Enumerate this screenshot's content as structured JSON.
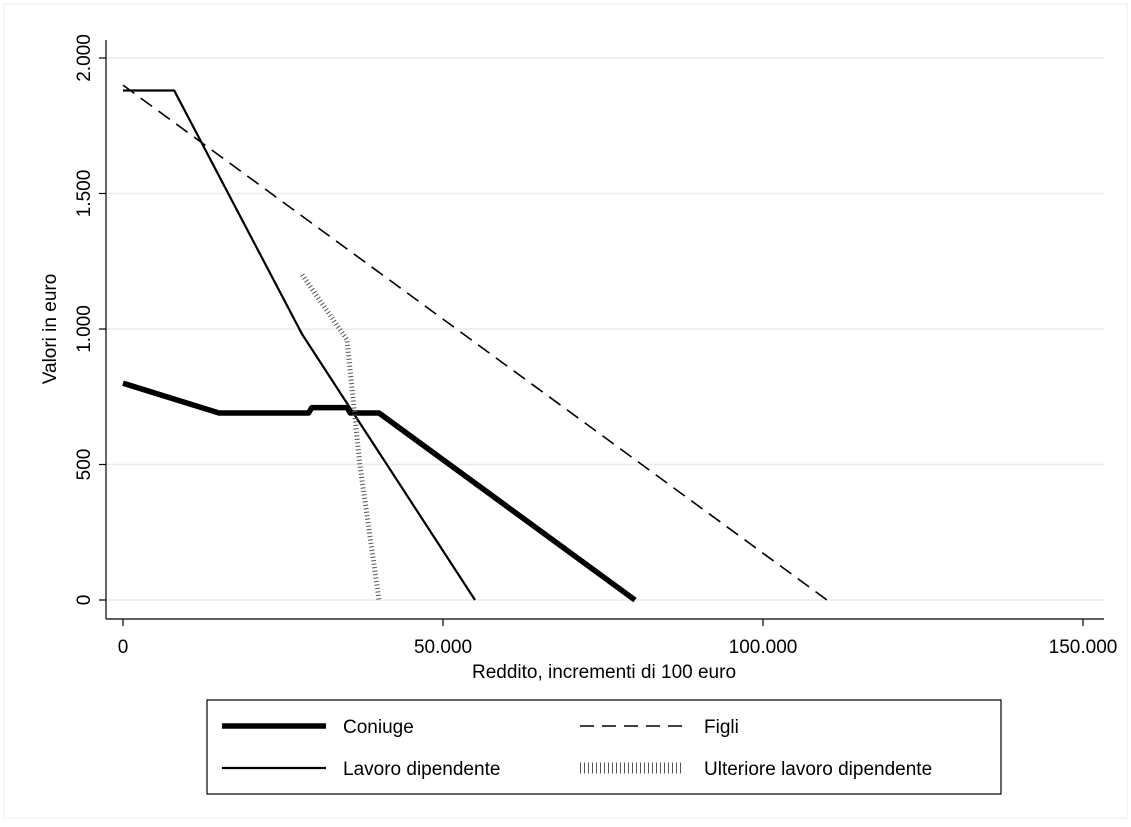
{
  "chart_data": {
    "type": "line",
    "title": "",
    "xlabel": "Reddito, incrementi di 100 euro",
    "ylabel": "Valori in euro",
    "xlim": [
      0,
      152000
    ],
    "ylim": [
      0,
      2000
    ],
    "x_ticks": [
      {
        "value": 0,
        "label": "0"
      },
      {
        "value": 50000,
        "label": "50.000"
      },
      {
        "value": 100000,
        "label": "100.000"
      },
      {
        "value": 150000,
        "label": "150.000"
      }
    ],
    "y_ticks": [
      {
        "value": 0,
        "label": "0"
      },
      {
        "value": 500,
        "label": "500"
      },
      {
        "value": 1000,
        "label": "1.000"
      },
      {
        "value": 1500,
        "label": "1.500"
      },
      {
        "value": 2000,
        "label": "2.000"
      }
    ],
    "grid": "horizontal",
    "legend_position": "bottom",
    "series": [
      {
        "name": "Coniuge",
        "style": "thick",
        "color": "#000000",
        "x": [
          0,
          15000,
          29000,
          29500,
          35000,
          35500,
          40000,
          80000
        ],
        "y": [
          800,
          690,
          690,
          710,
          710,
          690,
          690,
          0
        ]
      },
      {
        "name": "Figli",
        "style": "dashed",
        "color": "#000000",
        "x": [
          0,
          110000
        ],
        "y": [
          1900,
          0
        ]
      },
      {
        "name": "Lavoro dipendente",
        "style": "solid",
        "color": "#000000",
        "x": [
          0,
          8000,
          28000,
          55000
        ],
        "y": [
          1880,
          1880,
          980,
          0
        ]
      },
      {
        "name": "Ulteriore lavoro dipendente",
        "style": "dotted",
        "color": "#555555",
        "x": [
          28000,
          35000,
          37000,
          40000
        ],
        "y": [
          1200,
          960,
          500,
          0
        ]
      }
    ]
  }
}
